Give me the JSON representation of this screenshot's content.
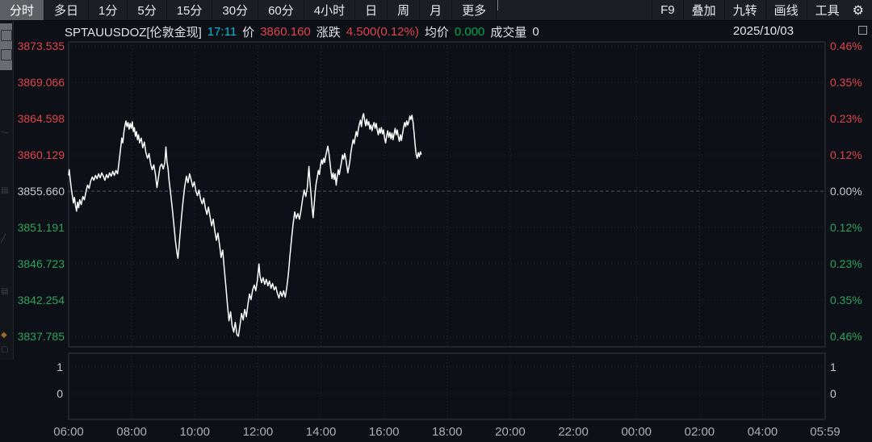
{
  "toolbar": {
    "tabs": [
      {
        "label": "分时",
        "selected": true
      },
      {
        "label": "多日",
        "selected": false
      },
      {
        "label": "1分",
        "selected": false
      },
      {
        "label": "5分",
        "selected": false
      },
      {
        "label": "15分",
        "selected": false
      },
      {
        "label": "30分",
        "selected": false
      },
      {
        "label": "60分",
        "selected": false
      },
      {
        "label": "4小时",
        "selected": false
      },
      {
        "label": "日",
        "selected": false
      },
      {
        "label": "周",
        "selected": false
      },
      {
        "label": "月",
        "selected": false
      },
      {
        "label": "更多",
        "selected": false
      }
    ],
    "right_buttons": [
      "F9",
      "叠加",
      "九转",
      "画线",
      "工具"
    ],
    "gear_icon": "⚙"
  },
  "info_bar": {
    "symbol": "SPTAUUSDOZ[伦敦金现]",
    "time": "17:11",
    "price_label": "价",
    "price": "3860.160",
    "change_label": "涨跌",
    "change": "4.500(0.12%)",
    "avg_label": "均价",
    "avg": "0.000",
    "volume_label": "成交量",
    "volume": "0",
    "date": "2025/10/03"
  },
  "colors": {
    "up_red": "#e0444c",
    "down_green": "#2ea35f",
    "avg_green": "#00a74e",
    "time_cyan": "#00bcd4",
    "line_white": "#ffffff",
    "grid": "#242a35",
    "border": "#333945",
    "midline": "#4d5564"
  },
  "chart_data": {
    "type": "line",
    "title": "SPTAUUSDOZ 伦敦金现 分时走势",
    "prev_close": 3855.66,
    "last_price": 3860.16,
    "last_time": "17:11",
    "legend_position": "none",
    "grid": true,
    "x_axis": {
      "tick_labels": [
        "06:00",
        "08:00",
        "10:00",
        "12:00",
        "14:00",
        "16:00",
        "18:00",
        "20:00",
        "22:00",
        "00:00",
        "02:00",
        "04:00",
        "05:59"
      ],
      "tick_minutes": [
        0,
        120,
        240,
        360,
        480,
        600,
        720,
        840,
        960,
        1080,
        1200,
        1320,
        1439
      ],
      "range_minutes": [
        0,
        1439
      ]
    },
    "y_axis_price": {
      "ticks": [
        3873.535,
        3869.066,
        3864.598,
        3860.129,
        3855.66,
        3851.191,
        3846.723,
        3842.254,
        3837.785
      ],
      "mid": 3855.66,
      "ylim": [
        3836.5,
        3874.5
      ]
    },
    "y_axis_pct": {
      "ticks": [
        "0.46%",
        "0.35%",
        "0.23%",
        "0.12%",
        "0.00%",
        "0.12%",
        "0.23%",
        "0.35%",
        "0.46%"
      ]
    },
    "volume_pane": {
      "ticks": [
        "1",
        "0"
      ],
      "note": "成交量 0 — no bars drawn"
    },
    "points": [
      [
        0,
        3857.6
      ],
      [
        1,
        3858.3
      ],
      [
        3,
        3857.1
      ],
      [
        5,
        3856.0
      ],
      [
        7,
        3855.1
      ],
      [
        9,
        3854.2
      ],
      [
        11,
        3854.9
      ],
      [
        13,
        3853.9
      ],
      [
        15,
        3853.2
      ],
      [
        17,
        3854.3
      ],
      [
        19,
        3853.6
      ],
      [
        21,
        3854.6
      ],
      [
        24,
        3854.0
      ],
      [
        27,
        3855.0
      ],
      [
        30,
        3854.6
      ],
      [
        33,
        3855.6
      ],
      [
        36,
        3856.4
      ],
      [
        39,
        3856.0
      ],
      [
        42,
        3856.9
      ],
      [
        45,
        3857.4
      ],
      [
        48,
        3857.0
      ],
      [
        51,
        3857.6
      ],
      [
        54,
        3857.2
      ],
      [
        57,
        3857.8
      ],
      [
        60,
        3857.3
      ],
      [
        63,
        3857.9
      ],
      [
        66,
        3857.5
      ],
      [
        69,
        3857.0
      ],
      [
        72,
        3857.7
      ],
      [
        75,
        3857.3
      ],
      [
        78,
        3857.9
      ],
      [
        81,
        3857.5
      ],
      [
        84,
        3858.1
      ],
      [
        87,
        3857.6
      ],
      [
        90,
        3858.2
      ],
      [
        93,
        3857.8
      ],
      [
        95,
        3858.8
      ],
      [
        97,
        3859.9
      ],
      [
        99,
        3861.0
      ],
      [
        101,
        3862.2
      ],
      [
        103,
        3861.6
      ],
      [
        105,
        3862.9
      ],
      [
        107,
        3863.7
      ],
      [
        109,
        3864.3
      ],
      [
        111,
        3863.6
      ],
      [
        113,
        3864.1
      ],
      [
        115,
        3863.3
      ],
      [
        117,
        3864.0
      ],
      [
        119,
        3863.4
      ],
      [
        121,
        3864.2
      ],
      [
        123,
        3863.0
      ],
      [
        125,
        3863.5
      ],
      [
        127,
        3862.4
      ],
      [
        129,
        3863.0
      ],
      [
        131,
        3862.0
      ],
      [
        133,
        3862.6
      ],
      [
        135,
        3861.6
      ],
      [
        138,
        3862.2
      ],
      [
        141,
        3861.0
      ],
      [
        144,
        3861.7
      ],
      [
        147,
        3860.4
      ],
      [
        150,
        3859.7
      ],
      [
        153,
        3860.3
      ],
      [
        156,
        3859.0
      ],
      [
        159,
        3858.3
      ],
      [
        162,
        3858.9
      ],
      [
        165,
        3857.8
      ],
      [
        168,
        3856.1
      ],
      [
        171,
        3857.4
      ],
      [
        174,
        3858.7
      ],
      [
        177,
        3859.0
      ],
      [
        180,
        3858.4
      ],
      [
        183,
        3859.2
      ],
      [
        185,
        3861.1
      ],
      [
        187,
        3859.3
      ],
      [
        189,
        3858.5
      ],
      [
        191,
        3857.0
      ],
      [
        194,
        3855.4
      ],
      [
        197,
        3853.6
      ],
      [
        200,
        3851.7
      ],
      [
        203,
        3849.6
      ],
      [
        206,
        3848.1
      ],
      [
        208,
        3847.4
      ],
      [
        210,
        3848.8
      ],
      [
        212,
        3850.4
      ],
      [
        215,
        3852.7
      ],
      [
        218,
        3854.6
      ],
      [
        221,
        3856.3
      ],
      [
        224,
        3857.5
      ],
      [
        227,
        3856.7
      ],
      [
        230,
        3857.8
      ],
      [
        233,
        3857.1
      ],
      [
        236,
        3856.2
      ],
      [
        239,
        3856.8
      ],
      [
        242,
        3855.7
      ],
      [
        245,
        3855.1
      ],
      [
        248,
        3855.8
      ],
      [
        251,
        3854.7
      ],
      [
        254,
        3854.1
      ],
      [
        257,
        3854.8
      ],
      [
        260,
        3853.6
      ],
      [
        263,
        3852.8
      ],
      [
        266,
        3853.7
      ],
      [
        269,
        3852.5
      ],
      [
        272,
        3851.4
      ],
      [
        275,
        3852.2
      ],
      [
        278,
        3850.8
      ],
      [
        281,
        3849.6
      ],
      [
        284,
        3850.5
      ],
      [
        287,
        3849.1
      ],
      [
        290,
        3847.5
      ],
      [
        293,
        3848.4
      ],
      [
        296,
        3846.2
      ],
      [
        299,
        3844.0
      ],
      [
        302,
        3841.8
      ],
      [
        305,
        3839.7
      ],
      [
        308,
        3840.8
      ],
      [
        311,
        3839.1
      ],
      [
        314,
        3838.3
      ],
      [
        317,
        3839.5
      ],
      [
        320,
        3838.0
      ],
      [
        323,
        3837.8
      ],
      [
        326,
        3839.2
      ],
      [
        329,
        3840.6
      ],
      [
        332,
        3839.8
      ],
      [
        335,
        3841.1
      ],
      [
        338,
        3840.2
      ],
      [
        341,
        3841.7
      ],
      [
        344,
        3843.0
      ],
      [
        347,
        3842.3
      ],
      [
        350,
        3843.5
      ],
      [
        353,
        3844.1
      ],
      [
        356,
        3843.4
      ],
      [
        359,
        3844.7
      ],
      [
        362,
        3846.7
      ],
      [
        364,
        3845.2
      ],
      [
        367,
        3844.4
      ],
      [
        370,
        3845.0
      ],
      [
        373,
        3844.2
      ],
      [
        376,
        3844.8
      ],
      [
        379,
        3844.0
      ],
      [
        382,
        3844.6
      ],
      [
        385,
        3843.7
      ],
      [
        388,
        3844.3
      ],
      [
        391,
        3843.5
      ],
      [
        394,
        3843.9
      ],
      [
        397,
        3843.1
      ],
      [
        400,
        3842.5
      ],
      [
        403,
        3843.3
      ],
      [
        406,
        3842.7
      ],
      [
        409,
        3843.4
      ],
      [
        412,
        3842.6
      ],
      [
        415,
        3843.8
      ],
      [
        418,
        3845.5
      ],
      [
        421,
        3847.7
      ],
      [
        424,
        3849.8
      ],
      [
        427,
        3851.6
      ],
      [
        430,
        3853.1
      ],
      [
        433,
        3852.3
      ],
      [
        436,
        3852.9
      ],
      [
        439,
        3852.2
      ],
      [
        442,
        3853.3
      ],
      [
        445,
        3854.7
      ],
      [
        448,
        3855.8
      ],
      [
        451,
        3855.0
      ],
      [
        454,
        3856.1
      ],
      [
        457,
        3858.7
      ],
      [
        459,
        3856.8
      ],
      [
        461,
        3855.3
      ],
      [
        463,
        3853.7
      ],
      [
        465,
        3852.4
      ],
      [
        467,
        3854.0
      ],
      [
        469,
        3855.6
      ],
      [
        471,
        3856.7
      ],
      [
        473,
        3857.4
      ],
      [
        475,
        3858.2
      ],
      [
        477,
        3857.7
      ],
      [
        479,
        3858.8
      ],
      [
        481,
        3859.5
      ],
      [
        483,
        3859.0
      ],
      [
        485,
        3859.7
      ],
      [
        487,
        3859.2
      ],
      [
        489,
        3860.0
      ],
      [
        491,
        3860.6
      ],
      [
        493,
        3861.2
      ],
      [
        495,
        3860.4
      ],
      [
        497,
        3859.3
      ],
      [
        499,
        3858.1
      ],
      [
        501,
        3857.2
      ],
      [
        503,
        3857.9
      ],
      [
        505,
        3857.1
      ],
      [
        507,
        3857.8
      ],
      [
        509,
        3856.4
      ],
      [
        511,
        3857.5
      ],
      [
        513,
        3858.3
      ],
      [
        515,
        3857.7
      ],
      [
        517,
        3858.5
      ],
      [
        519,
        3859.2
      ],
      [
        521,
        3860.1
      ],
      [
        523,
        3859.6
      ],
      [
        525,
        3860.3
      ],
      [
        527,
        3859.7
      ],
      [
        529,
        3858.8
      ],
      [
        531,
        3857.9
      ],
      [
        533,
        3858.6
      ],
      [
        535,
        3859.4
      ],
      [
        537,
        3860.5
      ],
      [
        539,
        3861.3
      ],
      [
        541,
        3862.0
      ],
      [
        543,
        3861.5
      ],
      [
        545,
        3862.3
      ],
      [
        547,
        3863.0
      ],
      [
        549,
        3862.4
      ],
      [
        551,
        3863.3
      ],
      [
        553,
        3863.9
      ],
      [
        555,
        3864.4
      ],
      [
        557,
        3863.6
      ],
      [
        559,
        3864.8
      ],
      [
        561,
        3865.2
      ],
      [
        563,
        3864.4
      ],
      [
        565,
        3863.7
      ],
      [
        567,
        3864.5
      ],
      [
        569,
        3863.8
      ],
      [
        571,
        3864.2
      ],
      [
        573,
        3863.3
      ],
      [
        575,
        3863.8
      ],
      [
        577,
        3863.1
      ],
      [
        579,
        3863.7
      ],
      [
        581,
        3864.1
      ],
      [
        583,
        3863.4
      ],
      [
        585,
        3864.0
      ],
      [
        587,
        3863.2
      ],
      [
        589,
        3862.6
      ],
      [
        591,
        3863.4
      ],
      [
        593,
        3862.8
      ],
      [
        595,
        3863.5
      ],
      [
        597,
        3862.7
      ],
      [
        599,
        3863.2
      ],
      [
        601,
        3862.2
      ],
      [
        603,
        3861.6
      ],
      [
        605,
        3862.5
      ],
      [
        607,
        3863.1
      ],
      [
        609,
        3862.3
      ],
      [
        611,
        3862.9
      ],
      [
        613,
        3862.1
      ],
      [
        615,
        3862.8
      ],
      [
        617,
        3862.0
      ],
      [
        619,
        3862.7
      ],
      [
        621,
        3863.4
      ],
      [
        623,
        3862.6
      ],
      [
        625,
        3863.2
      ],
      [
        627,
        3862.4
      ],
      [
        629,
        3861.8
      ],
      [
        631,
        3862.6
      ],
      [
        633,
        3861.9
      ],
      [
        635,
        3862.7
      ],
      [
        637,
        3863.5
      ],
      [
        639,
        3864.1
      ],
      [
        641,
        3863.6
      ],
      [
        643,
        3864.3
      ],
      [
        645,
        3863.8
      ],
      [
        647,
        3864.2
      ],
      [
        649,
        3864.9
      ],
      [
        651,
        3864.5
      ],
      [
        653,
        3865.0
      ],
      [
        655,
        3864.2
      ],
      [
        657,
        3862.9
      ],
      [
        659,
        3861.4
      ],
      [
        661,
        3860.2
      ],
      [
        663,
        3859.7
      ],
      [
        665,
        3860.4
      ],
      [
        667,
        3859.9
      ],
      [
        669,
        3860.5
      ],
      [
        671,
        3860.16
      ]
    ]
  }
}
